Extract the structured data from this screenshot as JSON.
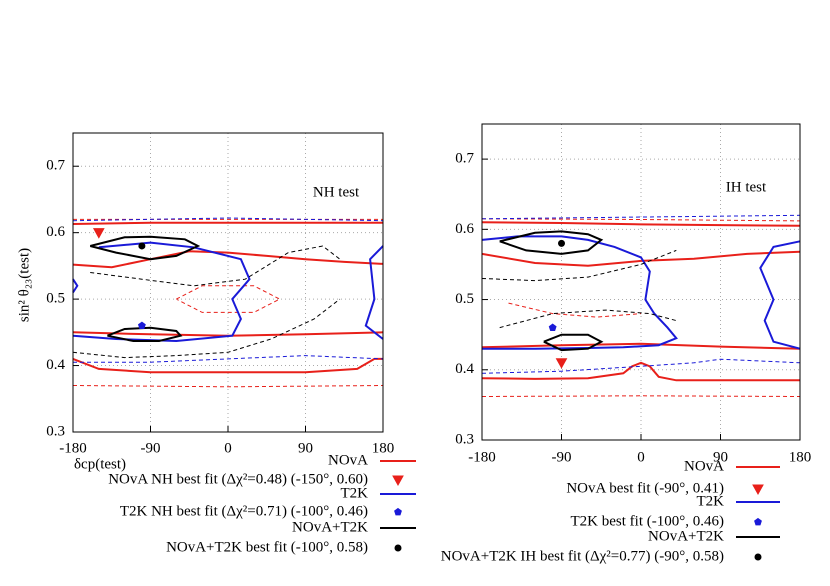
{
  "chart_data": [
    {
      "type": "contour",
      "annotation": "NH test",
      "xlabel": "δcp(test)",
      "ylabel": "sin² θ₂₃(test)",
      "xlim": [
        -180,
        180
      ],
      "ylim": [
        0.3,
        0.75
      ],
      "xticks": [
        -180,
        -90,
        0,
        90,
        180
      ],
      "yticks": [
        0.3,
        0.4,
        0.5,
        0.6,
        0.7
      ],
      "grid": true,
      "series": [
        {
          "name": "NOvA",
          "color": "#e8201a",
          "contours": [
            {
              "style": "solid",
              "x": [
                -180,
                -90,
                0,
                90,
                180
              ],
              "y": [
                0.613,
                0.615,
                0.615,
                0.615,
                0.615
              ]
            },
            {
              "style": "solid",
              "x": [
                -180,
                -135,
                -90,
                -45,
                0,
                45,
                90,
                135,
                180
              ],
              "y": [
                0.552,
                0.548,
                0.56,
                0.572,
                0.57,
                0.565,
                0.56,
                0.556,
                0.553
              ]
            },
            {
              "style": "solid",
              "x": [
                -180,
                -90,
                0,
                90,
                180
              ],
              "y": [
                0.45,
                0.447,
                0.445,
                0.447,
                0.45
              ]
            },
            {
              "style": "solid",
              "x": [
                -180,
                -150,
                -90,
                0,
                90,
                150,
                170,
                180
              ],
              "y": [
                0.41,
                0.395,
                0.39,
                0.39,
                0.39,
                0.395,
                0.41,
                0.41
              ]
            },
            {
              "style": "dashed",
              "x": [
                -180,
                0,
                180
              ],
              "y": [
                0.62,
                0.62,
                0.62
              ]
            },
            {
              "style": "dashed",
              "x": [
                -180,
                0,
                180
              ],
              "y": [
                0.37,
                0.368,
                0.37
              ]
            },
            {
              "style": "dashed",
              "x": [
                -60,
                -30,
                0,
                30,
                60,
                30,
                0,
                -30,
                -60
              ],
              "y": [
                0.5,
                0.52,
                0.52,
                0.52,
                0.5,
                0.48,
                0.48,
                0.48,
                0.5
              ]
            }
          ]
        },
        {
          "name": "T2K",
          "color": "#1a1ad8",
          "contours": [
            {
              "style": "solid",
              "x": [
                -150,
                -90,
                -40,
                15,
                25,
                5,
                15,
                5,
                -60,
                -130,
                -180
              ],
              "y": [
                0.578,
                0.585,
                0.578,
                0.56,
                0.53,
                0.5,
                0.47,
                0.445,
                0.437,
                0.44,
                0.445
              ]
            },
            {
              "style": "solid",
              "x": [
                180,
                165,
                170,
                160,
                180
              ],
              "y": [
                0.58,
                0.56,
                0.5,
                0.46,
                0.44
              ]
            },
            {
              "style": "solid",
              "x": [
                -180,
                -175,
                -180
              ],
              "y": [
                0.53,
                0.52,
                0.51
              ]
            },
            {
              "style": "dashed",
              "x": [
                -180,
                0,
                180
              ],
              "y": [
                0.618,
                0.622,
                0.618
              ]
            },
            {
              "style": "dashed",
              "x": [
                -180,
                -90,
                0,
                90,
                180
              ],
              "y": [
                0.405,
                0.405,
                0.41,
                0.415,
                0.41
              ]
            }
          ]
        },
        {
          "name": "NOvA+T2K",
          "color": "#000000",
          "contours": [
            {
              "style": "solid",
              "x": [
                -160,
                -120,
                -90,
                -50,
                -35,
                -60,
                -90,
                -130,
                -160
              ],
              "y": [
                0.58,
                0.593,
                0.594,
                0.59,
                0.58,
                0.565,
                0.56,
                0.57,
                0.58
              ]
            },
            {
              "style": "solid",
              "x": [
                -140,
                -120,
                -90,
                -60,
                -55,
                -80,
                -110,
                -140
              ],
              "y": [
                0.445,
                0.455,
                0.457,
                0.452,
                0.445,
                0.437,
                0.437,
                0.445
              ]
            },
            {
              "style": "dashed",
              "x": [
                -160,
                -100,
                -40,
                20,
                70,
                110,
                130
              ],
              "y": [
                0.54,
                0.53,
                0.52,
                0.53,
                0.57,
                0.58,
                0.56
              ]
            },
            {
              "style": "dashed",
              "x": [
                -180,
                -120,
                -60,
                0,
                50,
                100,
                130
              ],
              "y": [
                0.42,
                0.412,
                0.415,
                0.42,
                0.44,
                0.47,
                0.5
              ]
            }
          ]
        }
      ],
      "best_fits": [
        {
          "label": "NOvA NH best fit (Δχ²=0.48) (-150°, 0.60)",
          "x": -150,
          "y": 0.6,
          "color": "#e8201a",
          "marker": "triangle"
        },
        {
          "label": "T2K NH best fit (Δχ²=0.71) (-100°, 0.46)",
          "x": -100,
          "y": 0.46,
          "color": "#1a1ad8",
          "marker": "pentagon"
        },
        {
          "label": "NOvA+T2K best fit (-100°, 0.58)",
          "x": -100,
          "y": 0.58,
          "color": "#000000",
          "marker": "circle"
        }
      ]
    },
    {
      "type": "contour",
      "annotation": "IH test",
      "xlim": [
        -180,
        180
      ],
      "ylim": [
        0.3,
        0.75
      ],
      "xticks": [
        -180,
        -90,
        0,
        90,
        180
      ],
      "yticks": [
        0.3,
        0.4,
        0.5,
        0.6,
        0.7
      ],
      "grid": true,
      "series": [
        {
          "name": "NOvA",
          "color": "#e8201a",
          "contours": [
            {
              "style": "solid",
              "x": [
                -180,
                -90,
                0,
                90,
                180
              ],
              "y": [
                0.61,
                0.609,
                0.607,
                0.606,
                0.605
              ]
            },
            {
              "style": "solid",
              "x": [
                -180,
                -120,
                -60,
                0,
                60,
                120,
                180
              ],
              "y": [
                0.565,
                0.552,
                0.548,
                0.555,
                0.558,
                0.565,
                0.568
              ]
            },
            {
              "style": "solid",
              "x": [
                -180,
                -90,
                0,
                90,
                180
              ],
              "y": [
                0.432,
                0.435,
                0.437,
                0.433,
                0.43
              ]
            },
            {
              "style": "solid",
              "x": [
                -180,
                -120,
                -60,
                -20,
                -10,
                0,
                10,
                20,
                40,
                90,
                180
              ],
              "y": [
                0.388,
                0.387,
                0.388,
                0.395,
                0.405,
                0.41,
                0.405,
                0.39,
                0.385,
                0.385,
                0.385
              ]
            },
            {
              "style": "dashed",
              "x": [
                -180,
                0,
                180
              ],
              "y": [
                0.615,
                0.614,
                0.612
              ]
            },
            {
              "style": "dashed",
              "x": [
                -180,
                0,
                180
              ],
              "y": [
                0.362,
                0.363,
                0.362
              ]
            },
            {
              "style": "dashed",
              "x": [
                -150,
                -100,
                -50,
                0
              ],
              "y": [
                0.495,
                0.48,
                0.475,
                0.48
              ]
            }
          ]
        },
        {
          "name": "T2K",
          "color": "#1a1ad8",
          "contours": [
            {
              "style": "solid",
              "x": [
                -180,
                -140,
                -90,
                -60,
                -30,
                0,
                10,
                5,
                15,
                30,
                40,
                20,
                -20,
                -60,
                -120,
                -180
              ],
              "y": [
                0.585,
                0.59,
                0.59,
                0.585,
                0.575,
                0.56,
                0.54,
                0.5,
                0.48,
                0.46,
                0.445,
                0.435,
                0.432,
                0.431,
                0.43,
                0.43
              ]
            },
            {
              "style": "solid",
              "x": [
                180,
                150,
                135,
                150,
                140,
                150,
                180
              ],
              "y": [
                0.583,
                0.575,
                0.545,
                0.5,
                0.47,
                0.44,
                0.43
              ]
            },
            {
              "style": "dashed",
              "x": [
                -180,
                180
              ],
              "y": [
                0.615,
                0.62
              ]
            },
            {
              "style": "dashed",
              "x": [
                -180,
                -90,
                0,
                60,
                90,
                180
              ],
              "y": [
                0.395,
                0.398,
                0.405,
                0.41,
                0.415,
                0.41
              ]
            }
          ]
        },
        {
          "name": "NOvA+T2K",
          "color": "#000000",
          "contours": [
            {
              "style": "solid",
              "x": [
                -160,
                -120,
                -90,
                -60,
                -45,
                -60,
                -90,
                -130,
                -160
              ],
              "y": [
                0.583,
                0.595,
                0.597,
                0.593,
                0.585,
                0.57,
                0.565,
                0.57,
                0.583
              ]
            },
            {
              "style": "solid",
              "x": [
                -110,
                -90,
                -60,
                -45,
                -60,
                -90,
                -110
              ],
              "y": [
                0.44,
                0.45,
                0.45,
                0.44,
                0.43,
                0.428,
                0.44
              ]
            },
            {
              "style": "dashed",
              "x": [
                -180,
                -120,
                -60,
                0,
                40
              ],
              "y": [
                0.53,
                0.527,
                0.532,
                0.55,
                0.57
              ]
            },
            {
              "style": "dashed",
              "x": [
                -160,
                -100,
                -40,
                10,
                40
              ],
              "y": [
                0.46,
                0.48,
                0.485,
                0.48,
                0.47
              ]
            }
          ]
        }
      ],
      "best_fits": [
        {
          "label": "NOvA best fit (-90°, 0.41)",
          "x": -90,
          "y": 0.41,
          "color": "#e8201a",
          "marker": "triangle"
        },
        {
          "label": "T2K best fit (-100°, 0.46)",
          "x": -100,
          "y": 0.46,
          "color": "#1a1ad8",
          "marker": "pentagon"
        },
        {
          "label": "NOvA+T2K IH best fit (Δχ²=0.77) (-90°, 0.58)",
          "x": -90,
          "y": 0.58,
          "color": "#000000",
          "marker": "circle"
        }
      ]
    }
  ]
}
